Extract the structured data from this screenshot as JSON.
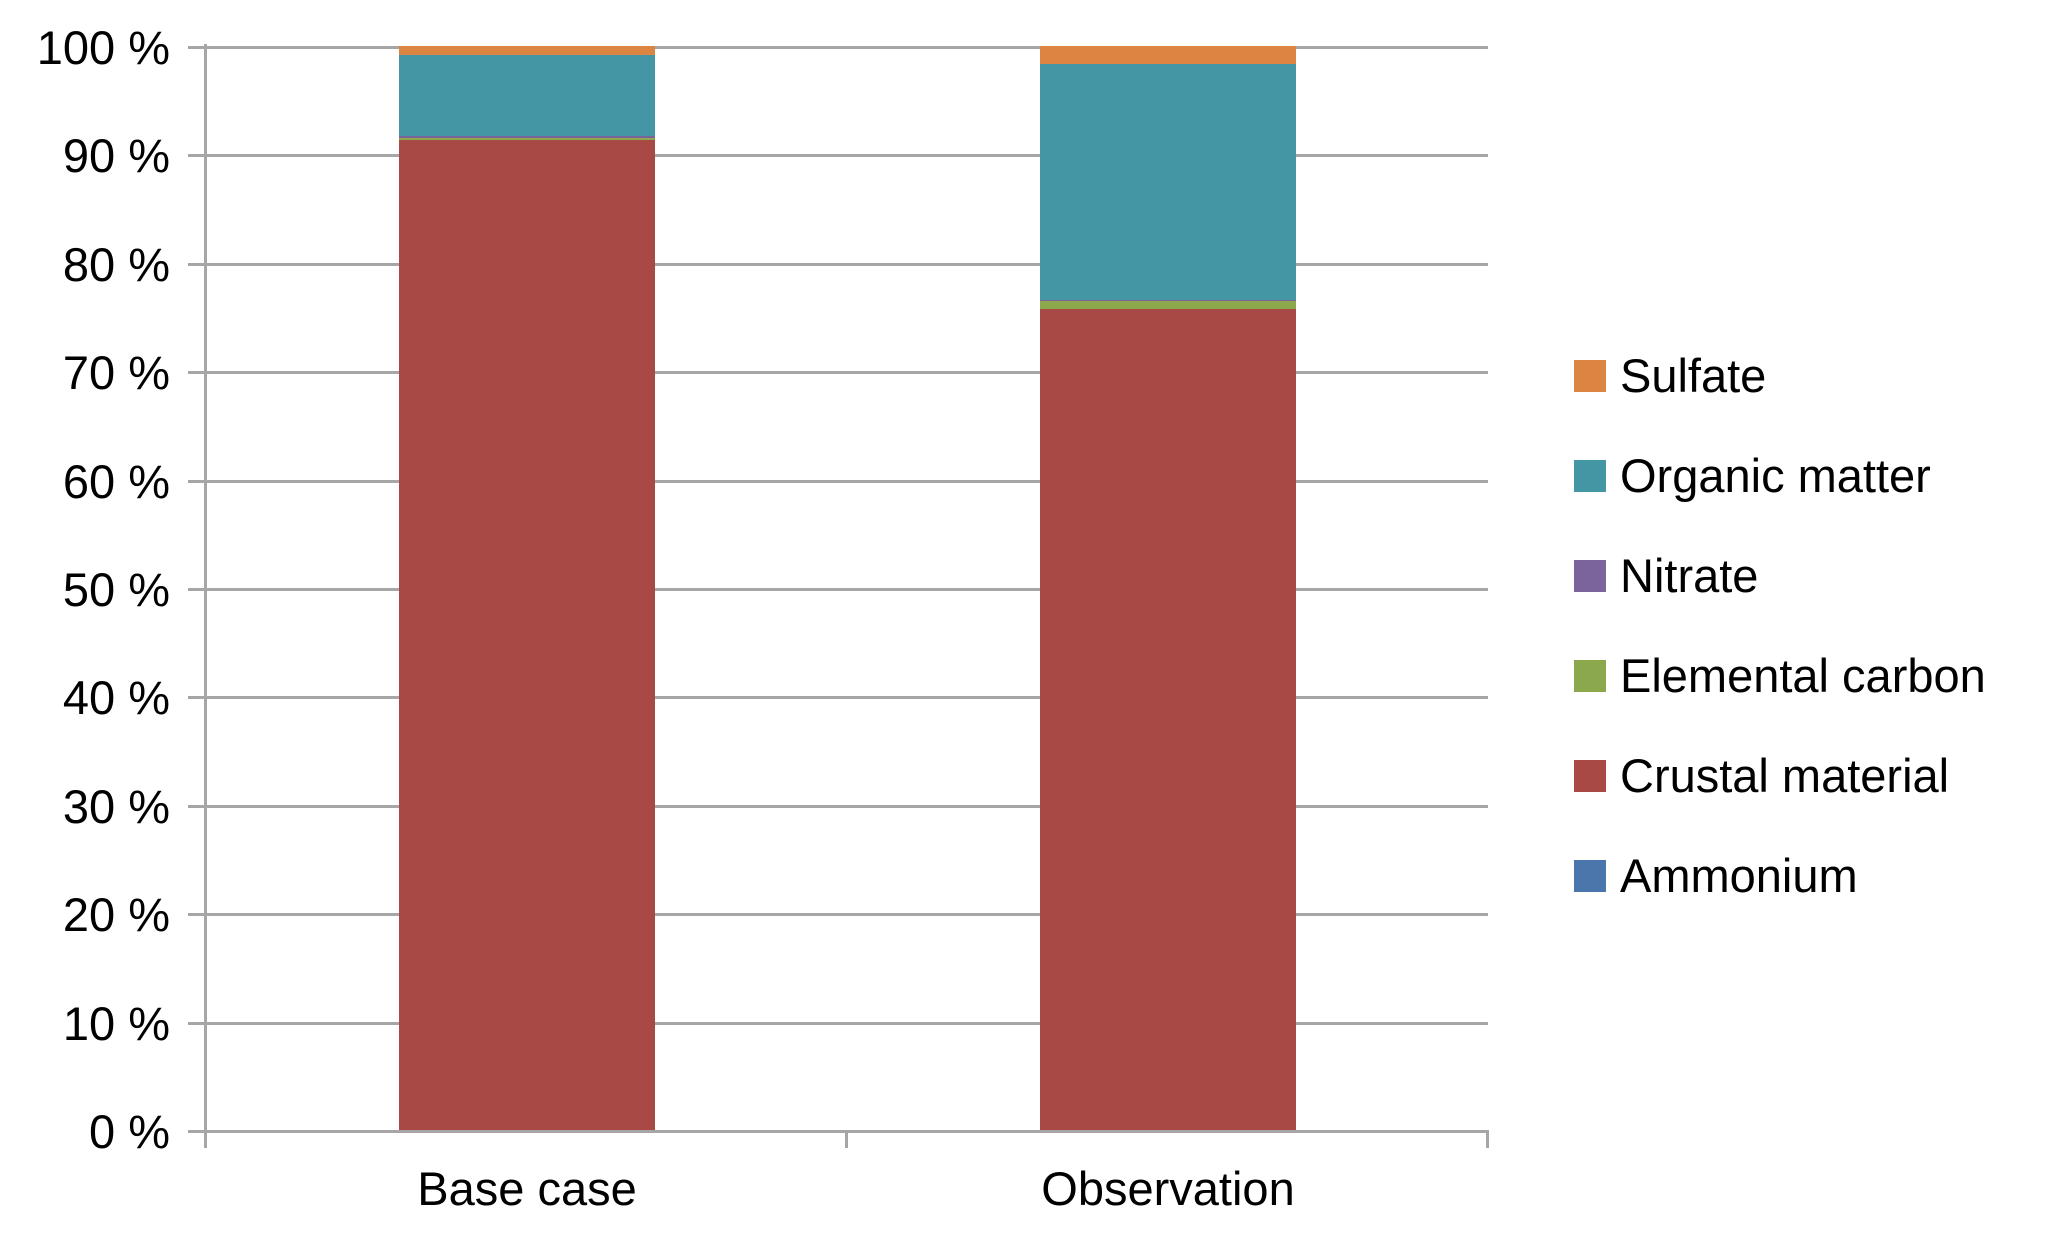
{
  "chart_data": {
    "type": "bar",
    "stacked": true,
    "orientation": "vertical",
    "title": "",
    "xlabel": "",
    "ylabel": "",
    "categories": [
      "Base case",
      "Observation"
    ],
    "series": [
      {
        "name": "Sulfate",
        "color": "#DC8543",
        "values": [
          0.8,
          1.7
        ]
      },
      {
        "name": "Organic matter",
        "color": "#4596A4",
        "values": [
          7.5,
          21.7
        ]
      },
      {
        "name": "Nitrate",
        "color": "#7B639B",
        "values": [
          0.2,
          0.1
        ]
      },
      {
        "name": "Elemental carbon",
        "color": "#8CA84C",
        "values": [
          0.2,
          0.8
        ]
      },
      {
        "name": "Crustal material",
        "color": "#A94945",
        "values": [
          91.3,
          75.7
        ]
      },
      {
        "name": "Ammonium",
        "color": "#4A76AC",
        "values": [
          0.0,
          0.0
        ]
      }
    ],
    "stack_order_top_to_bottom": [
      "Sulfate",
      "Organic matter",
      "Nitrate",
      "Elemental carbon",
      "Crustal material",
      "Ammonium"
    ],
    "ylim": [
      0,
      100
    ],
    "ytick_step": 10,
    "yticks": [
      "100 %",
      "90 %",
      "80 %",
      "70 %",
      "60 %",
      "50 %",
      "40 %",
      "30 %",
      "20 %",
      "10 %",
      "0 %"
    ],
    "grid": true,
    "legend_position": "right"
  },
  "colors": {
    "background": "#FFFFFF",
    "gridline": "#A6A6A6",
    "axis_line": "#A6A6A6",
    "text": "#000000"
  }
}
